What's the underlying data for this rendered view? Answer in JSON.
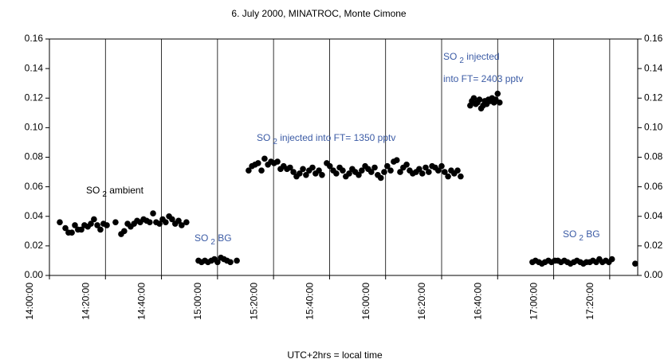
{
  "chart_data": {
    "type": "scatter",
    "title": "6. July 2000, MINATROC, Monte Cimone",
    "x_label": "UTC+2hrs = local time",
    "xlim": [
      840,
      1050
    ],
    "xticks": [
      {
        "value": 840,
        "label": "14:00:00"
      },
      {
        "value": 860,
        "label": "14:20:00"
      },
      {
        "value": 880,
        "label": "14:40:00"
      },
      {
        "value": 900,
        "label": "15:00:00"
      },
      {
        "value": 920,
        "label": "15:20:00"
      },
      {
        "value": 940,
        "label": "15:40:00"
      },
      {
        "value": 960,
        "label": "16:00:00"
      },
      {
        "value": 980,
        "label": "16:20:00"
      },
      {
        "value": 1000,
        "label": "16:40:00"
      },
      {
        "value": 1020,
        "label": "17:00:00"
      },
      {
        "value": 1040,
        "label": "17:20:00"
      }
    ],
    "ylim": [
      0,
      0.16
    ],
    "yticks": [
      {
        "value": 0,
        "label": "0.00"
      },
      {
        "value": 0.02,
        "label": "0.02"
      },
      {
        "value": 0.04,
        "label": "0.04"
      },
      {
        "value": 0.06,
        "label": "0.06"
      },
      {
        "value": 0.08,
        "label": "0.08"
      },
      {
        "value": 0.1,
        "label": "0.10"
      },
      {
        "value": 0.12,
        "label": "0.12"
      },
      {
        "value": 0.14,
        "label": "0.14"
      },
      {
        "value": 0.16,
        "label": "0.16"
      }
    ],
    "grid_x": true,
    "color": "#000000",
    "x": [
      843.7,
      845.7,
      846.8,
      848.0,
      849.1,
      850.2,
      851.4,
      852.5,
      853.7,
      854.8,
      855.9,
      857.1,
      858.2,
      859.3,
      860.5,
      863.6,
      865.6,
      866.7,
      867.9,
      869.0,
      870.2,
      871.3,
      872.4,
      873.6,
      874.7,
      875.8,
      877.0,
      878.1,
      879.3,
      880.4,
      881.5,
      882.7,
      883.8,
      884.9,
      886.1,
      887.2,
      888.9,
      893.2,
      894.3,
      895.5,
      896.6,
      897.8,
      898.9,
      900.0,
      901.2,
      902.3,
      903.4,
      904.6,
      906.9,
      911.1,
      912.3,
      913.4,
      914.5,
      915.7,
      916.8,
      918.0,
      919.1,
      920.2,
      921.4,
      922.5,
      923.6,
      924.8,
      925.9,
      927.1,
      928.2,
      929.3,
      930.5,
      931.6,
      932.7,
      933.9,
      935.0,
      936.2,
      937.3,
      939.0,
      940.1,
      941.3,
      942.4,
      943.6,
      944.7,
      945.8,
      947.0,
      948.1,
      949.2,
      950.4,
      951.5,
      952.7,
      953.8,
      954.9,
      956.1,
      957.2,
      958.3,
      959.5,
      960.6,
      961.8,
      962.9,
      964.0,
      965.2,
      966.3,
      967.5,
      968.6,
      969.7,
      970.9,
      972.0,
      973.1,
      974.3,
      975.4,
      976.6,
      977.7,
      978.8,
      980.0,
      981.1,
      982.3,
      983.4,
      984.5,
      985.7,
      986.8,
      990.2,
      990.8,
      991.5,
      992.2,
      992.8,
      993.5,
      994.1,
      994.8,
      995.4,
      996.1,
      996.7,
      997.4,
      998.0,
      998.7,
      999.3,
      1000.0,
      1000.7,
      1012.4,
      1013.5,
      1014.7,
      1015.8,
      1016.9,
      1018.1,
      1019.2,
      1020.4,
      1021.5,
      1022.6,
      1023.8,
      1024.9,
      1026.0,
      1027.2,
      1028.3,
      1029.5,
      1030.6,
      1031.7,
      1032.9,
      1034.0,
      1035.2,
      1036.3,
      1037.4,
      1038.6,
      1039.7,
      1040.8,
      1049.1
    ],
    "values": [
      0.036,
      0.032,
      0.029,
      0.029,
      0.034,
      0.031,
      0.031,
      0.034,
      0.033,
      0.035,
      0.038,
      0.034,
      0.031,
      0.035,
      0.034,
      0.036,
      0.028,
      0.03,
      0.035,
      0.033,
      0.035,
      0.037,
      0.036,
      0.038,
      0.037,
      0.036,
      0.042,
      0.036,
      0.035,
      0.038,
      0.036,
      0.04,
      0.038,
      0.035,
      0.037,
      0.034,
      0.036,
      0.01,
      0.009,
      0.01,
      0.009,
      0.01,
      0.011,
      0.009,
      0.012,
      0.011,
      0.01,
      0.009,
      0.01,
      0.071,
      0.074,
      0.075,
      0.076,
      0.071,
      0.079,
      0.075,
      0.077,
      0.076,
      0.077,
      0.072,
      0.074,
      0.072,
      0.073,
      0.07,
      0.067,
      0.069,
      0.072,
      0.068,
      0.071,
      0.073,
      0.069,
      0.071,
      0.068,
      0.076,
      0.074,
      0.071,
      0.069,
      0.073,
      0.071,
      0.067,
      0.069,
      0.072,
      0.07,
      0.068,
      0.071,
      0.074,
      0.072,
      0.07,
      0.073,
      0.068,
      0.066,
      0.07,
      0.074,
      0.071,
      0.077,
      0.078,
      0.07,
      0.073,
      0.075,
      0.071,
      0.069,
      0.07,
      0.072,
      0.069,
      0.073,
      0.07,
      0.074,
      0.073,
      0.071,
      0.074,
      0.07,
      0.067,
      0.071,
      0.069,
      0.071,
      0.067,
      0.115,
      0.118,
      0.12,
      0.116,
      0.117,
      0.119,
      0.113,
      0.115,
      0.118,
      0.116,
      0.119,
      0.118,
      0.12,
      0.117,
      0.119,
      0.123,
      0.117,
      0.009,
      0.01,
      0.009,
      0.008,
      0.009,
      0.01,
      0.009,
      0.01,
      0.01,
      0.009,
      0.01,
      0.009,
      0.008,
      0.009,
      0.01,
      0.009,
      0.008,
      0.009,
      0.009,
      0.01,
      0.009,
      0.011,
      0.009,
      0.01,
      0.009,
      0.011,
      0.008
    ],
    "annotations": [
      {
        "parts": [
          "SO",
          "2",
          " ambient"
        ],
        "color": "#000000"
      },
      {
        "parts": [
          "SO",
          "2",
          " BG"
        ],
        "color": "#3b5ba5"
      },
      {
        "parts": [
          "SO",
          "2",
          " injected into FT= 1350 pptv"
        ],
        "color": "#3b5ba5"
      },
      {
        "parts": [
          "SO",
          "2",
          " injected"
        ],
        "color": "#3b5ba5"
      },
      {
        "parts": [
          "into FT= 2403 pptv"
        ],
        "color": "#3b5ba5"
      },
      {
        "parts": [
          "SO",
          "2",
          " BG"
        ],
        "color": "#3b5ba5"
      }
    ]
  }
}
